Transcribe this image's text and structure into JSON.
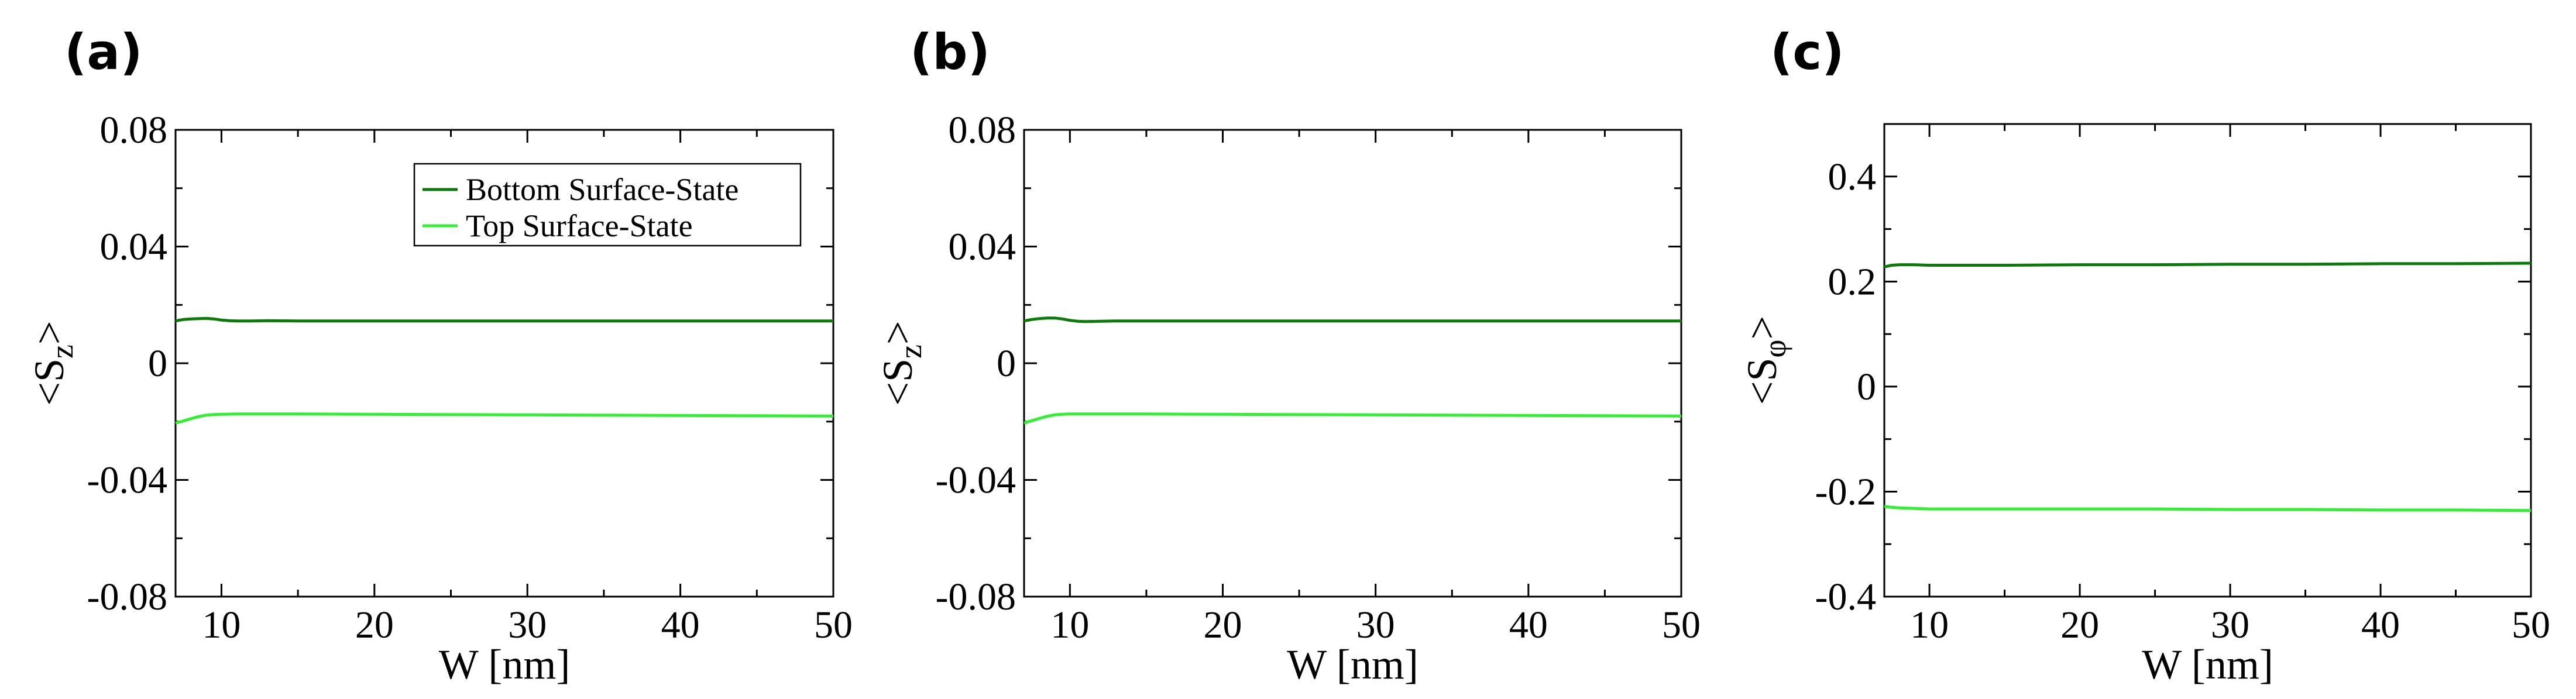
{
  "chart_data": [
    {
      "type": "line",
      "panel_label": "(a)",
      "xlabel": "W [nm]",
      "ylabel": "<S_z>",
      "ylabel_main": "S",
      "ylabel_sub": "z",
      "xlim": [
        7,
        50
      ],
      "ylim": [
        -0.08,
        0.08
      ],
      "xticks": [
        10,
        20,
        30,
        40,
        50
      ],
      "xtick_labels": [
        "10",
        "20",
        "30",
        "40",
        "50"
      ],
      "yticks": [
        0.08,
        0.04,
        0,
        -0.04,
        -0.08
      ],
      "ytick_labels": [
        "0.08",
        "0.04",
        "0",
        "-0.04",
        "-0.08"
      ],
      "grid": false,
      "legend": {
        "position": "top-right",
        "entries": [
          "Bottom Surface-State",
          "Top Surface-State"
        ]
      },
      "series": [
        {
          "name": "Bottom Surface-State",
          "color": "#0b7a0b",
          "x": [
            7,
            7.5,
            8,
            8.5,
            9,
            9.5,
            10,
            10.5,
            11,
            12,
            13,
            15,
            20,
            25,
            30,
            35,
            40,
            45,
            50
          ],
          "y": [
            0.0145,
            0.015,
            0.0152,
            0.0153,
            0.0154,
            0.0152,
            0.0148,
            0.0146,
            0.0145,
            0.0145,
            0.0146,
            0.0145,
            0.0145,
            0.0145,
            0.0145,
            0.0145,
            0.0145,
            0.0145,
            0.0145
          ]
        },
        {
          "name": "Top Surface-State",
          "color": "#33ee33",
          "x": [
            7,
            7.5,
            8,
            8.5,
            9,
            9.5,
            10,
            11,
            12,
            15,
            20,
            25,
            30,
            35,
            40,
            45,
            50
          ],
          "y": [
            -0.0205,
            -0.0198,
            -0.019,
            -0.0183,
            -0.0178,
            -0.0176,
            -0.0175,
            -0.0174,
            -0.0174,
            -0.0174,
            -0.0175,
            -0.0176,
            -0.0177,
            -0.0178,
            -0.0179,
            -0.018,
            -0.0181
          ]
        }
      ]
    },
    {
      "type": "line",
      "panel_label": "(b)",
      "xlabel": "W [nm]",
      "ylabel": "<S_z>",
      "ylabel_main": "S",
      "ylabel_sub": "z",
      "xlim": [
        7,
        50
      ],
      "ylim": [
        -0.08,
        0.08
      ],
      "xticks": [
        10,
        20,
        30,
        40,
        50
      ],
      "xtick_labels": [
        "10",
        "20",
        "30",
        "40",
        "50"
      ],
      "yticks": [
        0.08,
        0.04,
        0,
        -0.04,
        -0.08
      ],
      "ytick_labels": [
        "0.08",
        "0.04",
        "0",
        "-0.04",
        "-0.08"
      ],
      "grid": false,
      "series": [
        {
          "color": "#0b7a0b",
          "x": [
            7,
            7.5,
            8,
            8.5,
            9,
            9.5,
            10,
            10.5,
            11,
            12,
            13,
            15,
            20,
            25,
            30,
            35,
            40,
            45,
            50
          ],
          "y": [
            0.0145,
            0.015,
            0.0153,
            0.0155,
            0.0155,
            0.0152,
            0.0147,
            0.0144,
            0.0143,
            0.0144,
            0.0145,
            0.0145,
            0.0145,
            0.0145,
            0.0145,
            0.0145,
            0.0145,
            0.0145,
            0.0145
          ]
        },
        {
          "color": "#33ee33",
          "x": [
            7,
            7.5,
            8,
            8.5,
            9,
            9.5,
            10,
            11,
            12,
            15,
            20,
            25,
            30,
            35,
            40,
            45,
            50
          ],
          "y": [
            -0.0205,
            -0.0197,
            -0.0189,
            -0.0182,
            -0.0177,
            -0.0175,
            -0.0174,
            -0.0174,
            -0.0174,
            -0.0174,
            -0.0175,
            -0.0176,
            -0.0177,
            -0.0178,
            -0.0179,
            -0.018,
            -0.0181
          ]
        }
      ]
    },
    {
      "type": "line",
      "panel_label": "(c)",
      "xlabel": "W [nm]",
      "ylabel": "<S_φ>",
      "ylabel_main": "S",
      "ylabel_sub": "φ",
      "xlim": [
        7,
        50
      ],
      "ylim": [
        -0.4,
        0.5
      ],
      "xticks": [
        10,
        20,
        30,
        40,
        50
      ],
      "xtick_labels": [
        "10",
        "20",
        "30",
        "40",
        "50"
      ],
      "yticks": [
        0.4,
        0.2,
        0,
        -0.2,
        -0.4
      ],
      "ytick_labels": [
        "0.4",
        "0.2",
        "0",
        "-0.2",
        "-0.4"
      ],
      "grid": false,
      "series": [
        {
          "color": "#0b7a0b",
          "x": [
            7,
            7.5,
            8,
            9,
            10,
            12,
            15,
            20,
            25,
            30,
            35,
            40,
            45,
            50
          ],
          "y": [
            0.228,
            0.231,
            0.232,
            0.232,
            0.231,
            0.231,
            0.231,
            0.232,
            0.232,
            0.233,
            0.233,
            0.234,
            0.234,
            0.235
          ]
        },
        {
          "color": "#33ee33",
          "x": [
            7,
            7.5,
            8,
            9,
            10,
            12,
            15,
            20,
            25,
            30,
            35,
            40,
            45,
            50
          ],
          "y": [
            -0.228,
            -0.23,
            -0.231,
            -0.232,
            -0.233,
            -0.233,
            -0.233,
            -0.233,
            -0.233,
            -0.234,
            -0.234,
            -0.235,
            -0.235,
            -0.236
          ]
        }
      ]
    }
  ]
}
